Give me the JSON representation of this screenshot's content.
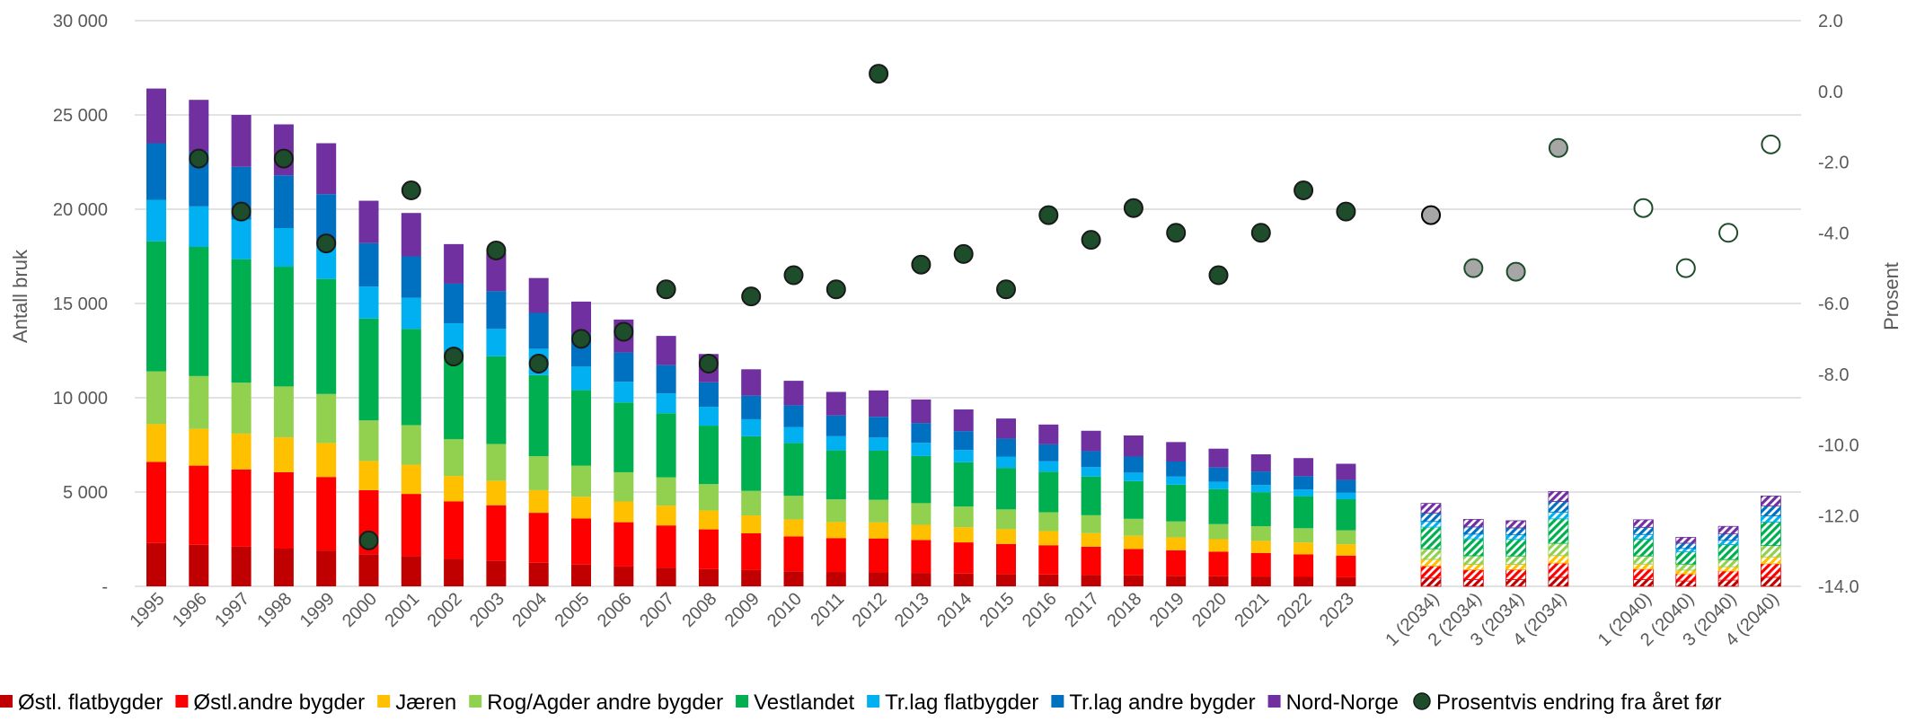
{
  "chart_data": {
    "type": "bar",
    "stacked": true,
    "ylabel": "Antall bruk",
    "y2label": "Prosent",
    "ylim": [
      0,
      30000
    ],
    "y2lim": [
      -14,
      2
    ],
    "yticks": [
      "-",
      "5 000",
      "10 000",
      "15 000",
      "20 000",
      "25 000",
      "30 000"
    ],
    "y2ticks": [
      "-14.0",
      "-12.0",
      "-10.0",
      "-8.0",
      "-6.0",
      "-4.0",
      "-2.0",
      "0.0",
      "2.0"
    ],
    "grid": true,
    "legend_position": "bottom",
    "categories": [
      "1995",
      "1996",
      "1997",
      "1998",
      "1999",
      "2000",
      "2001",
      "2002",
      "2003",
      "2004",
      "2005",
      "2006",
      "2007",
      "2008",
      "2009",
      "2010",
      "2011",
      "2012",
      "2013",
      "2014",
      "2015",
      "2016",
      "2017",
      "2018",
      "2019",
      "2020",
      "2021",
      "2022",
      "2023",
      "",
      "1 (2034)",
      "2 (2034)",
      "3 (2034)",
      "4 (2034)",
      "",
      "1 (2040)",
      "2 (2040)",
      "3 (2040)",
      "4 (2040)"
    ],
    "projection_categories": [
      "1 (2034)",
      "2 (2034)",
      "3 (2034)",
      "4 (2034)",
      "1 (2040)",
      "2 (2040)",
      "3 (2040)",
      "4 (2040)"
    ],
    "series": [
      {
        "name": "Østl. flatbygder",
        "color": "#c00000",
        "values": [
          2300,
          2200,
          2100,
          2000,
          1900,
          1700,
          1600,
          1450,
          1350,
          1250,
          1150,
          1050,
          980,
          920,
          860,
          800,
          760,
          740,
          710,
          680,
          650,
          630,
          600,
          580,
          560,
          540,
          520,
          500,
          480,
          null,
          440,
          360,
          360,
          480,
          null,
          360,
          280,
          330,
          480
        ]
      },
      {
        "name": "Østl.andre bygder",
        "color": "#ff0000",
        "values": [
          4300,
          4200,
          4100,
          4050,
          3900,
          3400,
          3300,
          3050,
          2950,
          2650,
          2450,
          2350,
          2250,
          2100,
          1950,
          1850,
          1800,
          1800,
          1750,
          1650,
          1600,
          1550,
          1500,
          1400,
          1350,
          1300,
          1250,
          1200,
          1150,
          null,
          640,
          520,
          530,
          750,
          null,
          550,
          380,
          480,
          720
        ]
      },
      {
        "name": "Jæren",
        "color": "#ffc000",
        "values": [
          2000,
          1950,
          1900,
          1850,
          1800,
          1550,
          1550,
          1350,
          1300,
          1200,
          1150,
          1100,
          1050,
          1000,
          950,
          900,
          850,
          850,
          800,
          800,
          780,
          750,
          720,
          700,
          680,
          660,
          640,
          620,
          600,
          null,
          350,
          290,
          280,
          400,
          null,
          270,
          200,
          230,
          360
        ]
      },
      {
        "name": "Rog/Agder andre bygder",
        "color": "#92d050",
        "values": [
          2800,
          2800,
          2700,
          2700,
          2600,
          2150,
          2100,
          1950,
          1950,
          1800,
          1650,
          1550,
          1500,
          1400,
          1300,
          1250,
          1200,
          1200,
          1150,
          1100,
          1050,
          1000,
          950,
          900,
          850,
          800,
          780,
          760,
          740,
          null,
          560,
          450,
          440,
          650,
          null,
          430,
          320,
          380,
          600
        ]
      },
      {
        "name": "Vestlandet",
        "color": "#00b050",
        "values": [
          6900,
          6850,
          6550,
          6350,
          6100,
          5400,
          5100,
          4650,
          4650,
          4300,
          4000,
          3700,
          3400,
          3100,
          2900,
          2800,
          2600,
          2600,
          2500,
          2350,
          2200,
          2150,
          2050,
          2000,
          1950,
          1850,
          1800,
          1700,
          1650,
          null,
          1150,
          900,
          880,
          1300,
          null,
          900,
          650,
          800,
          1250
        ]
      },
      {
        "name": "Tr.lag flatbygder",
        "color": "#00b0f0",
        "values": [
          2200,
          2150,
          2100,
          2050,
          1900,
          1700,
          1650,
          1500,
          1450,
          1400,
          1250,
          1100,
          1050,
          1000,
          900,
          850,
          750,
          700,
          700,
          650,
          600,
          550,
          500,
          450,
          430,
          400,
          380,
          360,
          340,
          null,
          300,
          250,
          240,
          360,
          null,
          240,
          180,
          220,
          330
        ]
      },
      {
        "name": "Tr.lag andre bygder",
        "color": "#0070c0",
        "values": [
          3000,
          2900,
          2800,
          2800,
          2600,
          2300,
          2200,
          2100,
          2000,
          1900,
          1750,
          1550,
          1500,
          1300,
          1250,
          1150,
          1100,
          1100,
          1050,
          1000,
          950,
          900,
          850,
          850,
          800,
          750,
          720,
          700,
          680,
          null,
          450,
          380,
          370,
          560,
          null,
          380,
          280,
          340,
          520
        ]
      },
      {
        "name": "Nord-Norge",
        "color": "#7030a0",
        "values": [
          2900,
          2750,
          2750,
          2700,
          2700,
          2250,
          2300,
          2100,
          2050,
          1850,
          1700,
          1750,
          1550,
          1500,
          1400,
          1300,
          1250,
          1400,
          1250,
          1150,
          1070,
          1050,
          1080,
          1120,
          1030,
          1000,
          910,
          960,
          860,
          null,
          510,
          400,
          380,
          530,
          null,
          400,
          310,
          400,
          530
        ]
      }
    ],
    "line_series": {
      "name": "Prosentvis endring fra året før",
      "axis": "right",
      "color": "#1e4d2b",
      "values": [
        null,
        -1.9,
        -3.4,
        -1.9,
        -4.3,
        -12.7,
        -2.8,
        -7.5,
        -4.5,
        -7.7,
        -7.0,
        -6.8,
        -5.6,
        -7.7,
        -5.8,
        -5.2,
        -5.6,
        0.5,
        -4.9,
        -4.6,
        -5.6,
        -3.5,
        -4.2,
        -3.3,
        -4.0,
        -5.2,
        -4.0,
        -2.8,
        -3.4,
        null,
        -3.5,
        -5.0,
        -5.1,
        -1.6,
        null,
        -3.3,
        -5.0,
        -4.0,
        -1.5
      ]
    }
  }
}
